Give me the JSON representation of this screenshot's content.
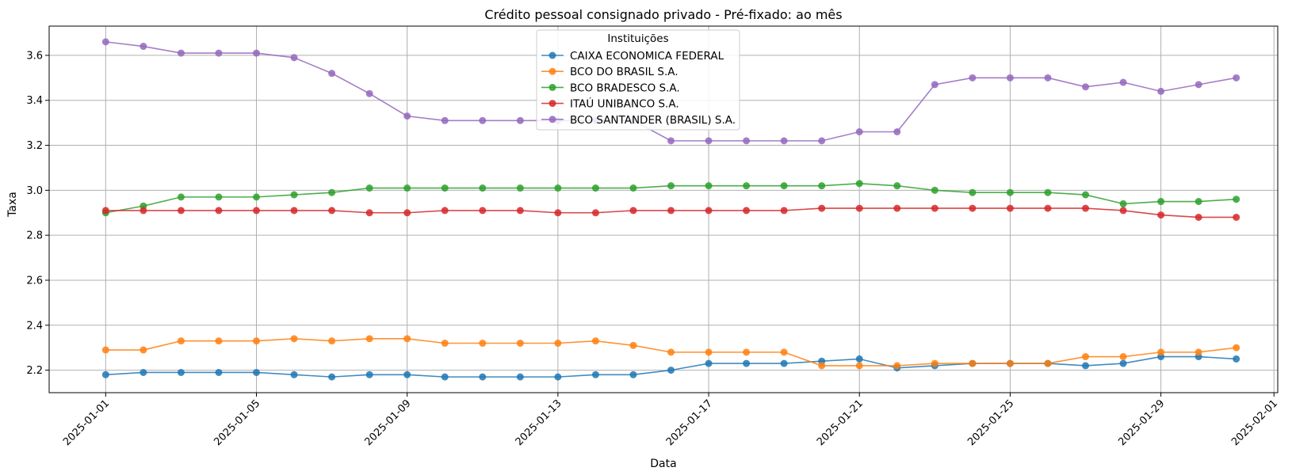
{
  "chart_data": {
    "type": "line",
    "title": "Crédito pessoal consignado privado - Pré-fixado: ao mês",
    "xlabel": "Data",
    "ylabel": "Taxa",
    "x": [
      "2025-01-01",
      "2025-01-02",
      "2025-01-03",
      "2025-01-04",
      "2025-01-05",
      "2025-01-06",
      "2025-01-07",
      "2025-01-08",
      "2025-01-09",
      "2025-01-10",
      "2025-01-11",
      "2025-01-12",
      "2025-01-13",
      "2025-01-14",
      "2025-01-15",
      "2025-01-16",
      "2025-01-17",
      "2025-01-18",
      "2025-01-19",
      "2025-01-20",
      "2025-01-21",
      "2025-01-22",
      "2025-01-23",
      "2025-01-24",
      "2025-01-25",
      "2025-01-26",
      "2025-01-27",
      "2025-01-28",
      "2025-01-29",
      "2025-01-30",
      "2025-01-31"
    ],
    "xticks": [
      "2025-01-01",
      "2025-01-05",
      "2025-01-09",
      "2025-01-13",
      "2025-01-17",
      "2025-01-21",
      "2025-01-25",
      "2025-01-29",
      "2025-02-01"
    ],
    "xlim": [
      "2025-01-01",
      "2025-02-01"
    ],
    "yticks": [
      2.2,
      2.4,
      2.6,
      2.8,
      3.0,
      3.2,
      3.4,
      3.6
    ],
    "ylim": [
      2.1,
      3.73
    ],
    "grid": true,
    "legend": {
      "title": "Instituições",
      "placement": "top-center"
    },
    "series": [
      {
        "name": "CAIXA ECONOMICA FEDERAL",
        "color": "#1f77b4",
        "values": [
          2.18,
          2.19,
          2.19,
          2.19,
          2.19,
          2.18,
          2.17,
          2.18,
          2.18,
          2.17,
          2.17,
          2.17,
          2.17,
          2.18,
          2.18,
          2.2,
          2.23,
          2.23,
          2.23,
          2.24,
          2.25,
          2.21,
          2.22,
          2.23,
          2.23,
          2.23,
          2.22,
          2.23,
          2.26,
          2.26,
          2.25
        ]
      },
      {
        "name": "BCO DO BRASIL S.A.",
        "color": "#ff7f0e",
        "values": [
          2.29,
          2.29,
          2.33,
          2.33,
          2.33,
          2.34,
          2.33,
          2.34,
          2.34,
          2.32,
          2.32,
          2.32,
          2.32,
          2.33,
          2.31,
          2.28,
          2.28,
          2.28,
          2.28,
          2.22,
          2.22,
          2.22,
          2.23,
          2.23,
          2.23,
          2.23,
          2.26,
          2.26,
          2.28,
          2.28,
          2.3
        ]
      },
      {
        "name": "BCO BRADESCO S.A.",
        "color": "#2ca02c",
        "values": [
          2.9,
          2.93,
          2.97,
          2.97,
          2.97,
          2.98,
          2.99,
          3.01,
          3.01,
          3.01,
          3.01,
          3.01,
          3.01,
          3.01,
          3.01,
          3.02,
          3.02,
          3.02,
          3.02,
          3.02,
          3.03,
          3.02,
          3.0,
          2.99,
          2.99,
          2.99,
          2.98,
          2.94,
          2.95,
          2.95,
          2.96
        ]
      },
      {
        "name": "ITAÚ UNIBANCO S.A.",
        "color": "#d62728",
        "values": [
          2.91,
          2.91,
          2.91,
          2.91,
          2.91,
          2.91,
          2.91,
          2.9,
          2.9,
          2.91,
          2.91,
          2.91,
          2.9,
          2.9,
          2.91,
          2.91,
          2.91,
          2.91,
          2.91,
          2.92,
          2.92,
          2.92,
          2.92,
          2.92,
          2.92,
          2.92,
          2.92,
          2.91,
          2.89,
          2.88,
          2.88
        ]
      },
      {
        "name": "BCO SANTANDER (BRASIL) S.A.",
        "color": "#9467bd",
        "values": [
          3.66,
          3.64,
          3.61,
          3.61,
          3.61,
          3.59,
          3.52,
          3.43,
          3.33,
          3.31,
          3.31,
          3.31,
          3.31,
          3.31,
          3.31,
          3.22,
          3.22,
          3.22,
          3.22,
          3.22,
          3.26,
          3.26,
          3.47,
          3.5,
          3.5,
          3.5,
          3.46,
          3.48,
          3.44,
          3.47,
          3.5
        ]
      }
    ]
  }
}
